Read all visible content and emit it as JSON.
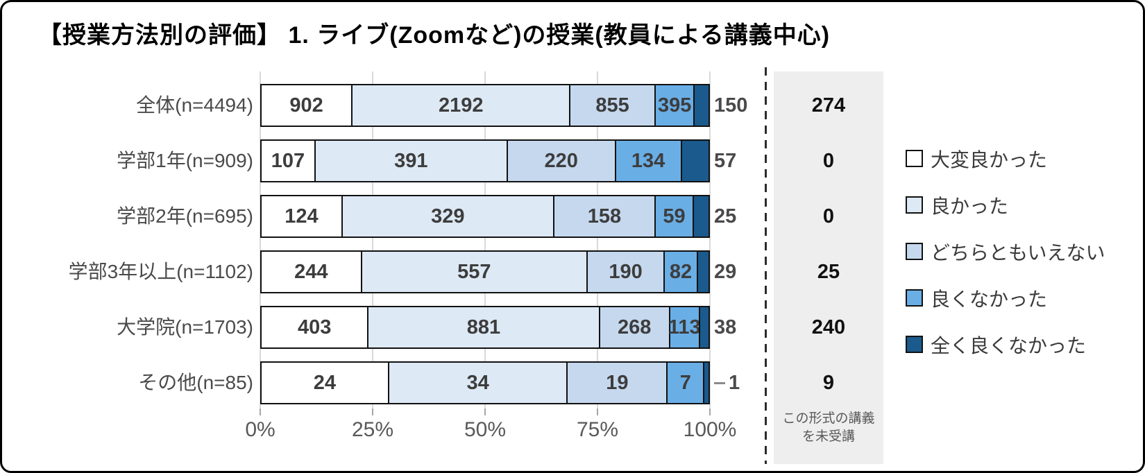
{
  "title": "【授業方法別の評価】 1. ライブ(Zoomなど)の授業(教員による講義中心)",
  "chart_data": {
    "type": "bar",
    "orientation": "horizontal",
    "stacked": "100%",
    "title": "【授業方法別の評価】 1. ライブ(Zoomなど)の授業(教員による講義中心)",
    "categories": [
      "全体(n=4494)",
      "学部1年(n=909)",
      "学部2年(n=695)",
      "学部3年以上(n=1102)",
      "大学院(n=1703)",
      "その他(n=85)"
    ],
    "series": [
      {
        "key": "very-good",
        "name": "大変良かった",
        "color": "#ffffff",
        "values": [
          902,
          107,
          124,
          244,
          403,
          24
        ]
      },
      {
        "key": "good",
        "name": "良かった",
        "color": "#dde9f5",
        "values": [
          2192,
          391,
          329,
          557,
          881,
          34
        ]
      },
      {
        "key": "neutral",
        "name": "どちらともいえない",
        "color": "#c5d8ee",
        "values": [
          855,
          220,
          158,
          190,
          268,
          19
        ]
      },
      {
        "key": "not-good",
        "name": "良くなかった",
        "color": "#6aaee6",
        "values": [
          395,
          134,
          59,
          82,
          113,
          7
        ]
      },
      {
        "key": "not-good-at-all",
        "name": "全く良くなかった",
        "color": "#1b5a8c",
        "values": [
          150,
          57,
          25,
          29,
          38,
          1
        ]
      }
    ],
    "row_totals": [
      4494,
      909,
      695,
      1102,
      1703,
      85
    ],
    "not_attended": {
      "caption_line1": "この形式の講義",
      "caption_line2": "を未受講",
      "values": [
        274,
        0,
        0,
        25,
        240,
        9
      ]
    },
    "x_tick_labels": [
      "0%",
      "25%",
      "50%",
      "75%",
      "100%"
    ],
    "x_range_percent": [
      0,
      100
    ],
    "grid": true,
    "legend_position": "right",
    "leader_rows": [
      5
    ]
  },
  "side_panel": {
    "caption_line1": "この形式の講義",
    "caption_line2": "を未受講"
  },
  "colors": {
    "panel_bg": "#eeeeee",
    "gridline": "#d9d9d9",
    "segment_border": "#111111",
    "dashed_line": "#2b2b2b",
    "axis_text": "#595959",
    "value_text": "#3d3d3d"
  }
}
